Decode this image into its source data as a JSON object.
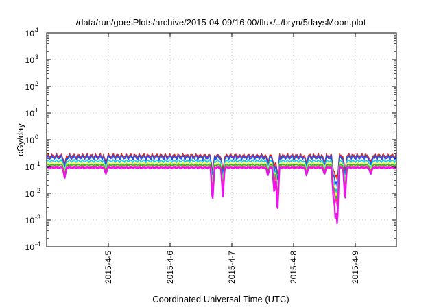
{
  "chart_data": {
    "type": "line",
    "title": "/data/run/goesPlots/archive/2015-04-09/16:00/flux/../bryn/5daysMoon.plot",
    "xlabel": "Coordinated Universal Time (UTC)",
    "ylabel": "cGy/day",
    "xlim": [
      "2015-04-04T00:00",
      "2015-04-09T16:00"
    ],
    "ylim": [
      0.0001,
      10000
    ],
    "yscale": "log",
    "grid": true,
    "x_ticks": [
      {
        "label": "2015-4-5",
        "value": "2015-04-05T00:00"
      },
      {
        "label": "2015-4-6",
        "value": "2015-04-06T00:00"
      },
      {
        "label": "2015-4-7",
        "value": "2015-04-07T00:00"
      },
      {
        "label": "2015-4-8",
        "value": "2015-04-08T00:00"
      },
      {
        "label": "2015-4-9",
        "value": "2015-04-09T00:00"
      }
    ],
    "y_ticks": [
      {
        "base": "10",
        "exp": "4",
        "value": 10000
      },
      {
        "base": "10",
        "exp": "3",
        "value": 1000
      },
      {
        "base": "10",
        "exp": "2",
        "value": 100
      },
      {
        "base": "10",
        "exp": "1",
        "value": 10
      },
      {
        "base": "10",
        "exp": "0",
        "value": 1
      },
      {
        "base": "10",
        "exp": "-1",
        "value": 0.1
      },
      {
        "base": "10",
        "exp": "-2",
        "value": 0.01
      },
      {
        "base": "10",
        "exp": "-3",
        "value": 0.001
      },
      {
        "base": "10",
        "exp": "-4",
        "value": 0.0001
      }
    ],
    "series": [
      {
        "color": "#e52222",
        "level": 0.25,
        "amplitude": 0.12,
        "dip_depth": 0.35
      },
      {
        "color": "#2255ee",
        "level": 0.22,
        "amplitude": 0.13,
        "dip_depth": 0.45
      },
      {
        "color": "#22ccdd",
        "level": 0.16,
        "amplitude": 0.08,
        "dip_depth": 0.55
      },
      {
        "color": "#ffff44",
        "level": 0.13,
        "amplitude": 0.06,
        "dip_depth": 0.6
      },
      {
        "color": "#22bb22",
        "level": 0.115,
        "amplitude": 0.05,
        "dip_depth": 0.65
      },
      {
        "color": "#ff33aa",
        "level": 0.1,
        "amplitude": 0.05,
        "dip_depth": 0.7
      },
      {
        "color": "#ee11ee",
        "level": 0.09,
        "amplitude": 0.04,
        "dip_depth": 1.0
      }
    ],
    "dips": [
      {
        "time": "2015-04-04T07:00",
        "value": 0.035
      },
      {
        "time": "2015-04-04T23:00",
        "value": 0.05
      },
      {
        "time": "2015-04-06T16:30",
        "value": 0.0045
      },
      {
        "time": "2015-04-06T20:30",
        "value": 0.007
      },
      {
        "time": "2015-04-07T14:00",
        "value": 0.045
      },
      {
        "time": "2015-04-07T16:30",
        "value": 0.009
      },
      {
        "time": "2015-04-07T17:45",
        "value": 0.0016
      },
      {
        "time": "2015-04-08T05:00",
        "value": 0.045
      },
      {
        "time": "2015-04-08T12:00",
        "value": 0.05
      },
      {
        "time": "2015-04-08T15:30",
        "value": 0.006
      },
      {
        "time": "2015-04-08T16:15",
        "value": 0.0009
      },
      {
        "time": "2015-04-08T17:00",
        "value": 0.0005
      },
      {
        "time": "2015-04-08T20:00",
        "value": 0.005
      },
      {
        "time": "2015-04-09T06:00",
        "value": 0.05
      }
    ]
  }
}
